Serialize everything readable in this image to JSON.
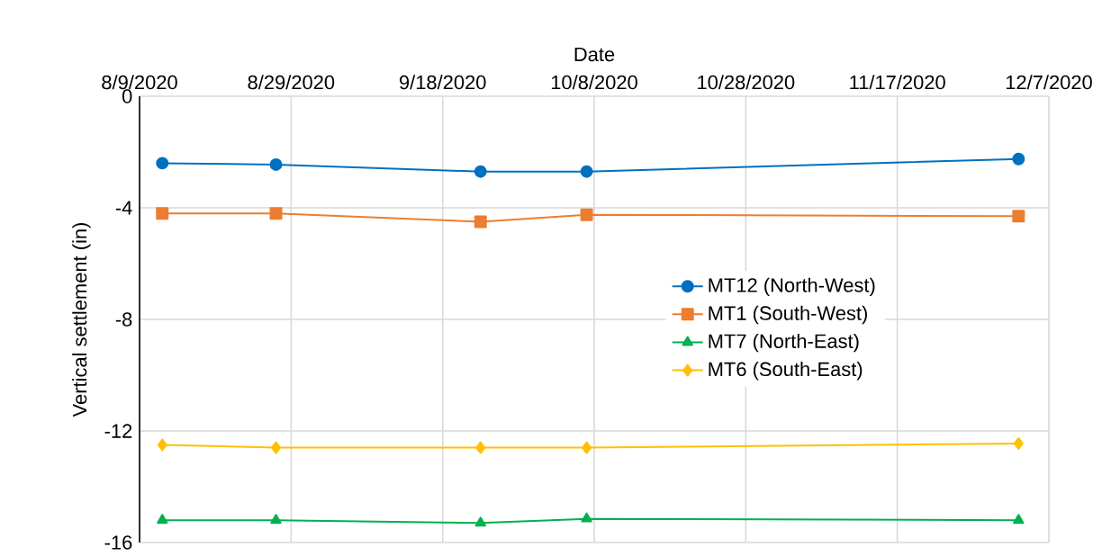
{
  "chart_data": {
    "type": "line",
    "xlabel": "Date",
    "ylabel": "Vertical settlement (in)",
    "x": [
      "2020-08-12",
      "2020-08-27",
      "2020-09-23",
      "2020-10-07",
      "2020-12-03"
    ],
    "series": [
      {
        "name": "MT12 (North-West)",
        "color": "#0070c0",
        "marker": "circle",
        "values": [
          -2.4,
          -2.45,
          -2.7,
          -2.7,
          -2.25
        ]
      },
      {
        "name": "MT1 (South-West)",
        "color": "#ed7d31",
        "marker": "square",
        "values": [
          -4.2,
          -4.2,
          -4.5,
          -4.25,
          -4.3
        ]
      },
      {
        "name": "MT7 (North-East)",
        "color": "#00b050",
        "marker": "triangle",
        "values": [
          -15.2,
          -15.2,
          -15.3,
          -15.15,
          -15.2
        ]
      },
      {
        "name": "MT6 (South-East)",
        "color": "#ffc000",
        "marker": "diamond",
        "values": [
          -12.5,
          -12.6,
          -12.6,
          -12.6,
          -12.45
        ]
      }
    ],
    "xlim": [
      "2020-08-09",
      "2020-12-07"
    ],
    "xticks": [
      {
        "value": "2020-08-09",
        "label": "8/9/2020"
      },
      {
        "value": "2020-08-29",
        "label": "8/29/2020"
      },
      {
        "value": "2020-09-18",
        "label": "9/18/2020"
      },
      {
        "value": "2020-10-08",
        "label": "10/8/2020"
      },
      {
        "value": "2020-10-28",
        "label": "10/28/2020"
      },
      {
        "value": "2020-11-17",
        "label": "11/17/2020"
      },
      {
        "value": "2020-12-07",
        "label": "12/7/2020"
      }
    ],
    "ylim": [
      -16,
      0
    ],
    "yticks": [
      -16,
      -12,
      -8,
      -4,
      0
    ],
    "grid": true,
    "legend": "right"
  }
}
